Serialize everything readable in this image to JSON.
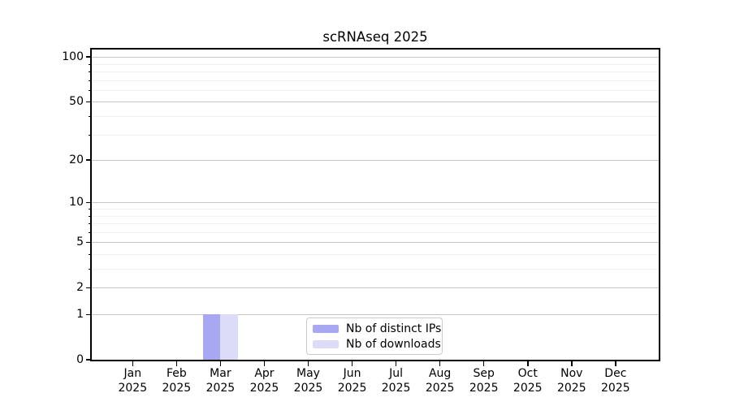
{
  "chart_data": {
    "type": "bar",
    "title": "scRNAseq 2025",
    "categories": [
      "Jan 2025",
      "Feb 2025",
      "Mar 2025",
      "Apr 2025",
      "May 2025",
      "Jun 2025",
      "Jul 2025",
      "Aug 2025",
      "Sep 2025",
      "Oct 2025",
      "Nov 2025",
      "Dec 2025"
    ],
    "series": [
      {
        "name": "Nb of distinct IPs",
        "color": "#a8a8f2",
        "values": [
          0,
          0,
          1,
          0,
          0,
          0,
          0,
          0,
          0,
          0,
          0,
          0
        ]
      },
      {
        "name": "Nb of downloads",
        "color": "#dcdcf9",
        "values": [
          0,
          0,
          1,
          0,
          0,
          0,
          0,
          0,
          0,
          0,
          0,
          0
        ]
      }
    ],
    "xlabel": "",
    "ylabel": "",
    "yscale": "log1p",
    "ylim": [
      0,
      113
    ],
    "y_major_ticks": [
      0,
      1,
      2,
      5,
      10,
      20,
      50,
      100
    ],
    "y_minor_ticks": [
      3,
      4,
      6,
      7,
      8,
      9,
      30,
      40,
      60,
      70,
      80,
      90
    ],
    "grid": "major+minor horizontal",
    "legend_position": "lower-center",
    "colors": {
      "major_grid": "#c6c6c6",
      "minor_grid": "#f0f0f0",
      "axis": "#000000",
      "legend_border": "#cccccc",
      "background": "#ffffff"
    }
  }
}
